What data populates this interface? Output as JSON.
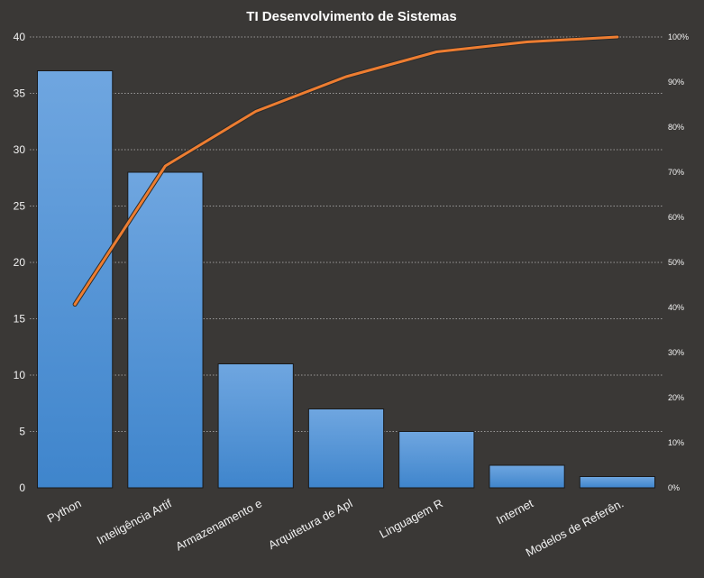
{
  "chart_data": {
    "type": "bar",
    "title": "TI Desenvolvimento  de Sistemas",
    "categories": [
      "Python",
      "Inteligência Artif",
      "Armazenamento  e",
      "Arquitetura  de Apl",
      "Linguagem R",
      "Internet",
      "Modelos de Referên."
    ],
    "series": [
      {
        "type": "bar",
        "axis": "left",
        "values": [
          37,
          28,
          11,
          7,
          5,
          2,
          1
        ]
      },
      {
        "type": "line",
        "axis": "right",
        "values": [
          40.7,
          71.4,
          83.5,
          91.2,
          96.7,
          98.9,
          100.0
        ]
      }
    ],
    "ylim": [
      0,
      40
    ],
    "yticks": [
      "0",
      "5",
      "10",
      "15",
      "20",
      "25",
      "30",
      "35",
      "40"
    ],
    "y2lim": [
      0,
      100
    ],
    "y2ticks": [
      "0%",
      "10%",
      "20%",
      "30%",
      "40%",
      "50%",
      "60%",
      "70%",
      "80%",
      "90%",
      "100%"
    ],
    "grid": true,
    "legend": "none",
    "colors": {
      "background": "#3a3836",
      "bar": "#4a8fd4",
      "bar_top": "#6fa6e0",
      "line": "#ed7d31",
      "grid": "#d9d9d9",
      "text": "#f2f2f2"
    }
  }
}
